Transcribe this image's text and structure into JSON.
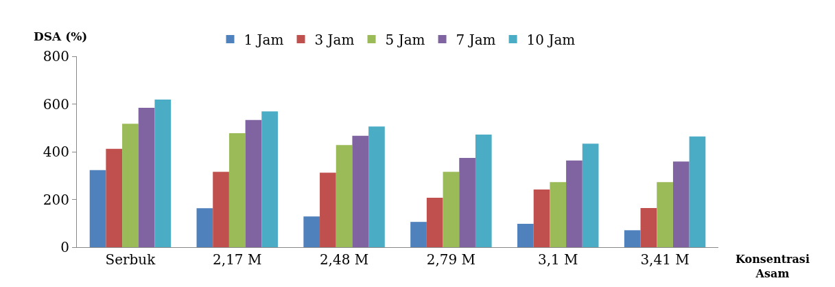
{
  "chart_data": {
    "type": "bar",
    "ylabel": "DSA (%)",
    "xlabel": "Konsentrasi Asam",
    "categories": [
      "Serbuk",
      "2,17 M",
      "2,48 M",
      "2,79 M",
      "3,1 M",
      "3,41 M"
    ],
    "series": [
      {
        "name": "1 Jam",
        "color": "#4f81bd",
        "values": [
          323,
          163,
          129,
          106,
          98,
          71
        ]
      },
      {
        "name": "3 Jam",
        "color": "#c0504d",
        "values": [
          412,
          316,
          312,
          207,
          242,
          164
        ]
      },
      {
        "name": "5 Jam",
        "color": "#9bbb59",
        "values": [
          517,
          478,
          428,
          316,
          273,
          273
        ]
      },
      {
        "name": "7 Jam",
        "color": "#8064a2",
        "values": [
          584,
          533,
          467,
          374,
          363,
          359
        ]
      },
      {
        "name": "10 Jam",
        "color": "#4bacc6",
        "values": [
          619,
          569,
          506,
          472,
          434,
          464
        ]
      }
    ],
    "ylim": [
      0,
      800
    ],
    "yticks": [
      0,
      200,
      400,
      600,
      800
    ],
    "grid": false,
    "legend": "top"
  }
}
